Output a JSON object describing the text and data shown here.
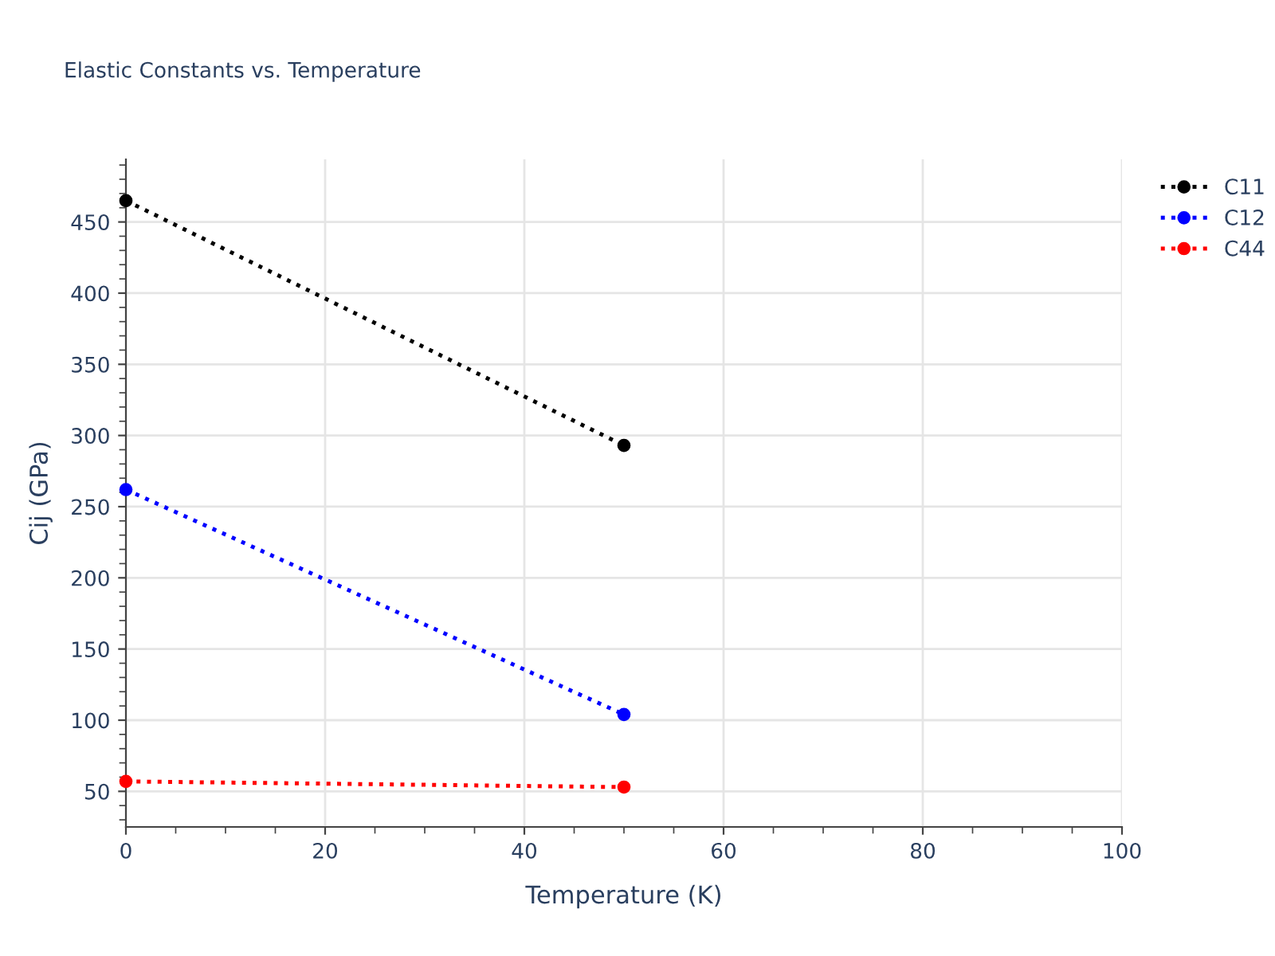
{
  "chart_data": {
    "type": "line",
    "title": "Elastic Constants vs. Temperature",
    "xlabel": "Temperature (K)",
    "ylabel": "Cij (GPa)",
    "x": [
      0,
      50
    ],
    "series": [
      {
        "name": "C11",
        "color": "#000000",
        "values": [
          465,
          293
        ]
      },
      {
        "name": "C12",
        "color": "#0000ff",
        "values": [
          262,
          104
        ]
      },
      {
        "name": "C44",
        "color": "#ff0000",
        "values": [
          57,
          53
        ]
      }
    ],
    "xlim": [
      0,
      100
    ],
    "xticks": [
      0,
      20,
      40,
      60,
      80,
      100
    ],
    "ylim": [
      25,
      494
    ],
    "yticks": [
      50,
      100,
      150,
      200,
      250,
      300,
      350,
      400,
      450
    ],
    "grid": true,
    "legend": "top right",
    "marker": "circle",
    "line_style": "dotted"
  }
}
